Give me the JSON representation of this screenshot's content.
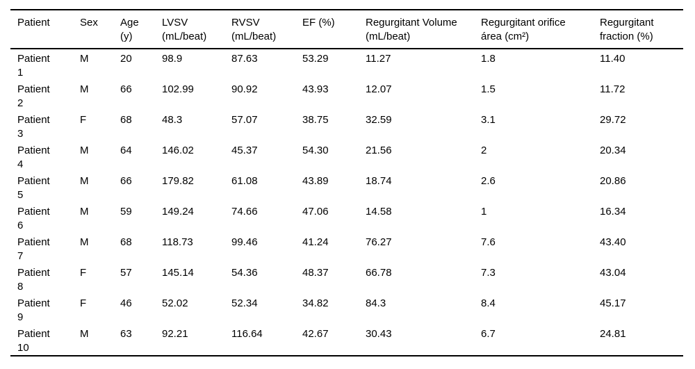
{
  "colors": {
    "background": "#ffffff",
    "text": "#000000",
    "rule": "#000000"
  },
  "table": {
    "columns": [
      {
        "id": "patient",
        "label": "Patient"
      },
      {
        "id": "sex",
        "label": "Sex"
      },
      {
        "id": "age",
        "label": "Age\n(y)"
      },
      {
        "id": "lvsv",
        "label": "LVSV\n(mL/beat)"
      },
      {
        "id": "rvsv",
        "label": "RVSV\n(mL/beat)"
      },
      {
        "id": "ef",
        "label": "EF (%)"
      },
      {
        "id": "reg_volume",
        "label": "Regurgitant Volume\n(mL/beat)"
      },
      {
        "id": "reg_orifice_area",
        "label": "Regurgitant orifice\nárea (cm²)"
      },
      {
        "id": "reg_fraction",
        "label": "Regurgitant\nfraction (%)"
      }
    ],
    "rows": [
      {
        "patient": "Patient\n1",
        "sex": "M",
        "age": "20",
        "lvsv": "98.9",
        "rvsv": "87.63",
        "ef": "53.29",
        "reg_volume": "11.27",
        "reg_orifice_area": "1.8",
        "reg_fraction": "11.40"
      },
      {
        "patient": "Patient\n2",
        "sex": "M",
        "age": "66",
        "lvsv": "102.99",
        "rvsv": "90.92",
        "ef": "43.93",
        "reg_volume": "12.07",
        "reg_orifice_area": "1.5",
        "reg_fraction": "11.72"
      },
      {
        "patient": "Patient\n3",
        "sex": "F",
        "age": "68",
        "lvsv": "48.3",
        "rvsv": "57.07",
        "ef": "38.75",
        "reg_volume": "32.59",
        "reg_orifice_area": "3.1",
        "reg_fraction": "29.72"
      },
      {
        "patient": "Patient\n4",
        "sex": "M",
        "age": "64",
        "lvsv": "146.02",
        "rvsv": "45.37",
        "ef": "54.30",
        "reg_volume": "21.56",
        "reg_orifice_area": "2",
        "reg_fraction": "20.34"
      },
      {
        "patient": "Patient\n5",
        "sex": "M",
        "age": "66",
        "lvsv": "179.82",
        "rvsv": "61.08",
        "ef": "43.89",
        "reg_volume": "18.74",
        "reg_orifice_area": "2.6",
        "reg_fraction": "20.86"
      },
      {
        "patient": "Patient\n6",
        "sex": "M",
        "age": "59",
        "lvsv": "149.24",
        "rvsv": "74.66",
        "ef": "47.06",
        "reg_volume": "14.58",
        "reg_orifice_area": "1",
        "reg_fraction": "16.34"
      },
      {
        "patient": "Patient\n7",
        "sex": "M",
        "age": "68",
        "lvsv": "118.73",
        "rvsv": "99.46",
        "ef": "41.24",
        "reg_volume": "76.27",
        "reg_orifice_area": "7.6",
        "reg_fraction": "43.40"
      },
      {
        "patient": "Patient\n8",
        "sex": "F",
        "age": "57",
        "lvsv": "145.14",
        "rvsv": "54.36",
        "ef": "48.37",
        "reg_volume": "66.78",
        "reg_orifice_area": "7.3",
        "reg_fraction": "43.04"
      },
      {
        "patient": "Patient\n9",
        "sex": "F",
        "age": "46",
        "lvsv": "52.02",
        "rvsv": "52.34",
        "ef": "34.82",
        "reg_volume": "84.3",
        "reg_orifice_area": "8.4",
        "reg_fraction": "45.17"
      },
      {
        "patient": "Patient\n10",
        "sex": "M",
        "age": "63",
        "lvsv": "92.21",
        "rvsv": "116.64",
        "ef": "42.67",
        "reg_volume": "30.43",
        "reg_orifice_area": "6.7",
        "reg_fraction": "24.81"
      }
    ]
  }
}
